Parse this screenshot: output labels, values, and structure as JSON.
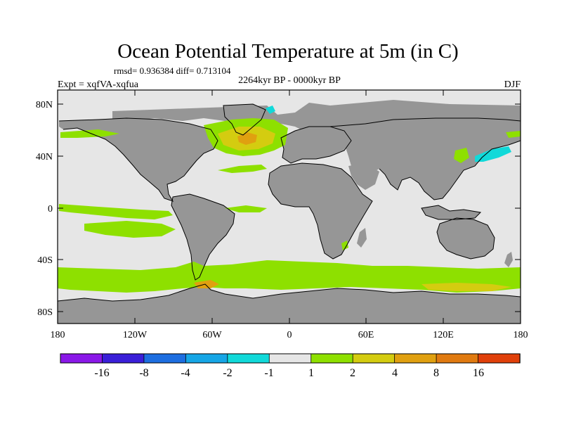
{
  "title": "Ocean Potential Temperature at 5m (in C)",
  "stats": "rmsd= 0.936384 diff= 0.713104",
  "time_range": "2264kyr BP - 0000kyr BP",
  "experiment": "Expt = xqfVA-xqfua",
  "season": "DJF",
  "lat_ticks": [
    "80N",
    "40N",
    "0",
    "40S",
    "80S"
  ],
  "lon_ticks": [
    "180",
    "120W",
    "60W",
    "0",
    "60E",
    "120E",
    "180"
  ],
  "colors": {
    "land": "#969696",
    "ocean_neutral": "#e6e6e6",
    "warm_1_2": "#8ee000",
    "warm_2_4": "#d4cc10",
    "warm_4_8": "#e0a010",
    "cool_m1_m2": "#11d9d9"
  },
  "colorbar": {
    "bins": [
      {
        "color": "#8a18e8"
      },
      {
        "color": "#3a1fd8"
      },
      {
        "color": "#1d6ee0"
      },
      {
        "color": "#16a6e6"
      },
      {
        "color": "#11d9d9"
      },
      {
        "color": "#e6e6e6"
      },
      {
        "color": "#8ee000"
      },
      {
        "color": "#d4cc10"
      },
      {
        "color": "#e0a010"
      },
      {
        "color": "#e07a10"
      },
      {
        "color": "#e0400a"
      }
    ],
    "labels": [
      "-16",
      "-8",
      "-4",
      "-2",
      "-1",
      "1",
      "2",
      "4",
      "8",
      "16"
    ]
  }
}
